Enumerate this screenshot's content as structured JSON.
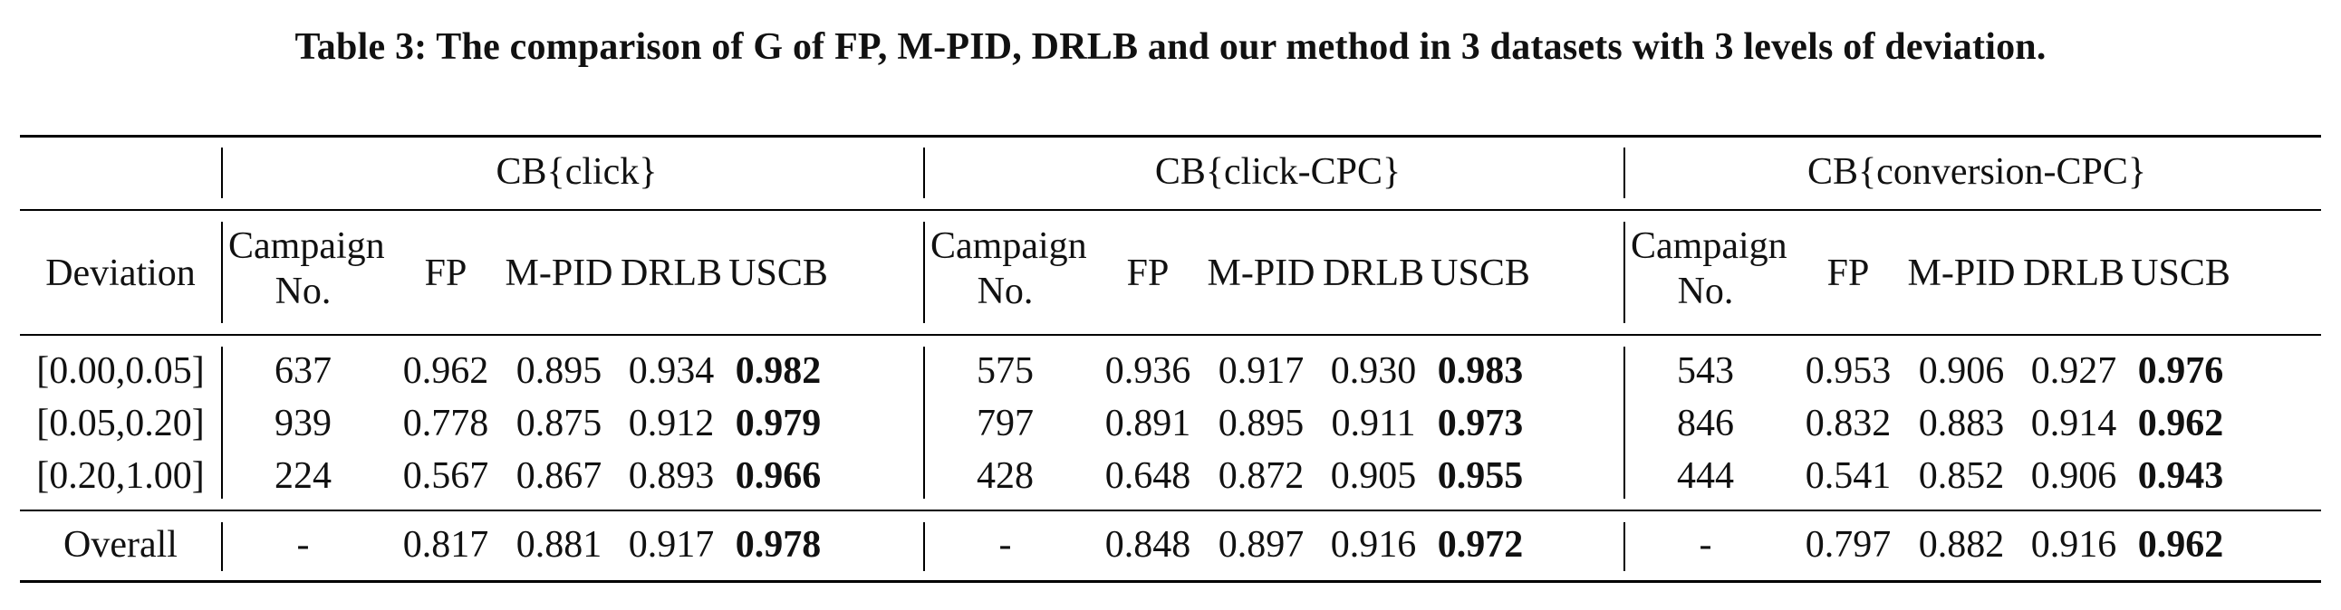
{
  "caption": "Table 3: The comparison of G of FP, M-PID, DRLB and our method in 3 datasets with 3 levels of deviation.",
  "groups": [
    "CB{click}",
    "CB{click-CPC}",
    "CB{conversion-CPC}"
  ],
  "row_header": "Deviation",
  "column_headers": [
    "Campaign No.",
    "FP",
    "M-PID",
    "DRLB",
    "USCB"
  ],
  "campaign_header_lines": [
    "Campaign",
    "No."
  ],
  "rows": [
    {
      "deviation": "[0.00,0.05]",
      "groups": [
        {
          "campaign": "637",
          "fp": "0.962",
          "mpid": "0.895",
          "drlb": "0.934",
          "uscb": "0.982"
        },
        {
          "campaign": "575",
          "fp": "0.936",
          "mpid": "0.917",
          "drlb": "0.930",
          "uscb": "0.983"
        },
        {
          "campaign": "543",
          "fp": "0.953",
          "mpid": "0.906",
          "drlb": "0.927",
          "uscb": "0.976"
        }
      ]
    },
    {
      "deviation": "[0.05,0.20]",
      "groups": [
        {
          "campaign": "939",
          "fp": "0.778",
          "mpid": "0.875",
          "drlb": "0.912",
          "uscb": "0.979"
        },
        {
          "campaign": "797",
          "fp": "0.891",
          "mpid": "0.895",
          "drlb": "0.911",
          "uscb": "0.973"
        },
        {
          "campaign": "846",
          "fp": "0.832",
          "mpid": "0.883",
          "drlb": "0.914",
          "uscb": "0.962"
        }
      ]
    },
    {
      "deviation": "[0.20,1.00]",
      "groups": [
        {
          "campaign": "224",
          "fp": "0.567",
          "mpid": "0.867",
          "drlb": "0.893",
          "uscb": "0.966"
        },
        {
          "campaign": "428",
          "fp": "0.648",
          "mpid": "0.872",
          "drlb": "0.905",
          "uscb": "0.955"
        },
        {
          "campaign": "444",
          "fp": "0.541",
          "mpid": "0.852",
          "drlb": "0.906",
          "uscb": "0.943"
        }
      ]
    }
  ],
  "overall": {
    "deviation": "Overall",
    "groups": [
      {
        "campaign": "-",
        "fp": "0.817",
        "mpid": "0.881",
        "drlb": "0.917",
        "uscb": "0.978"
      },
      {
        "campaign": "-",
        "fp": "0.848",
        "mpid": "0.897",
        "drlb": "0.916",
        "uscb": "0.972"
      },
      {
        "campaign": "-",
        "fp": "0.797",
        "mpid": "0.882",
        "drlb": "0.916",
        "uscb": "0.962"
      }
    ]
  }
}
